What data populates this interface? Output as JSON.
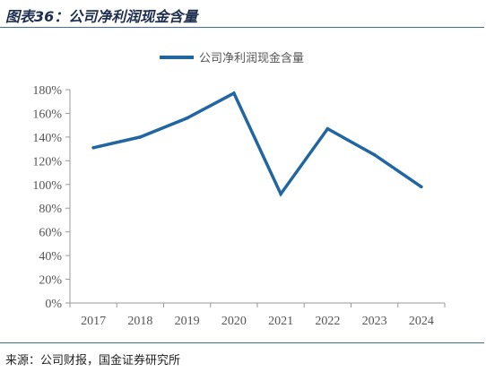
{
  "header": {
    "title": "图表36：公司净利润现金含量"
  },
  "footer": {
    "source": "来源：公司财报，国金证券研究所"
  },
  "colors": {
    "line": "#2166a1",
    "axis": "#999999",
    "rule": "#3e6ea8"
  },
  "chart_data": {
    "type": "line",
    "title": "",
    "xlabel": "",
    "ylabel": "",
    "categories": [
      "2017",
      "2018",
      "2019",
      "2020",
      "2021",
      "2022",
      "2023",
      "2024"
    ],
    "series": [
      {
        "name": "公司净利润现金含量",
        "values": [
          131,
          140,
          156,
          177,
          92,
          147,
          125,
          98
        ]
      }
    ],
    "ylim": [
      0,
      180
    ],
    "yticks": [
      0,
      20,
      40,
      60,
      80,
      100,
      120,
      140,
      160,
      180
    ],
    "ytick_format": "percent",
    "grid": false,
    "legend": "top-center"
  }
}
